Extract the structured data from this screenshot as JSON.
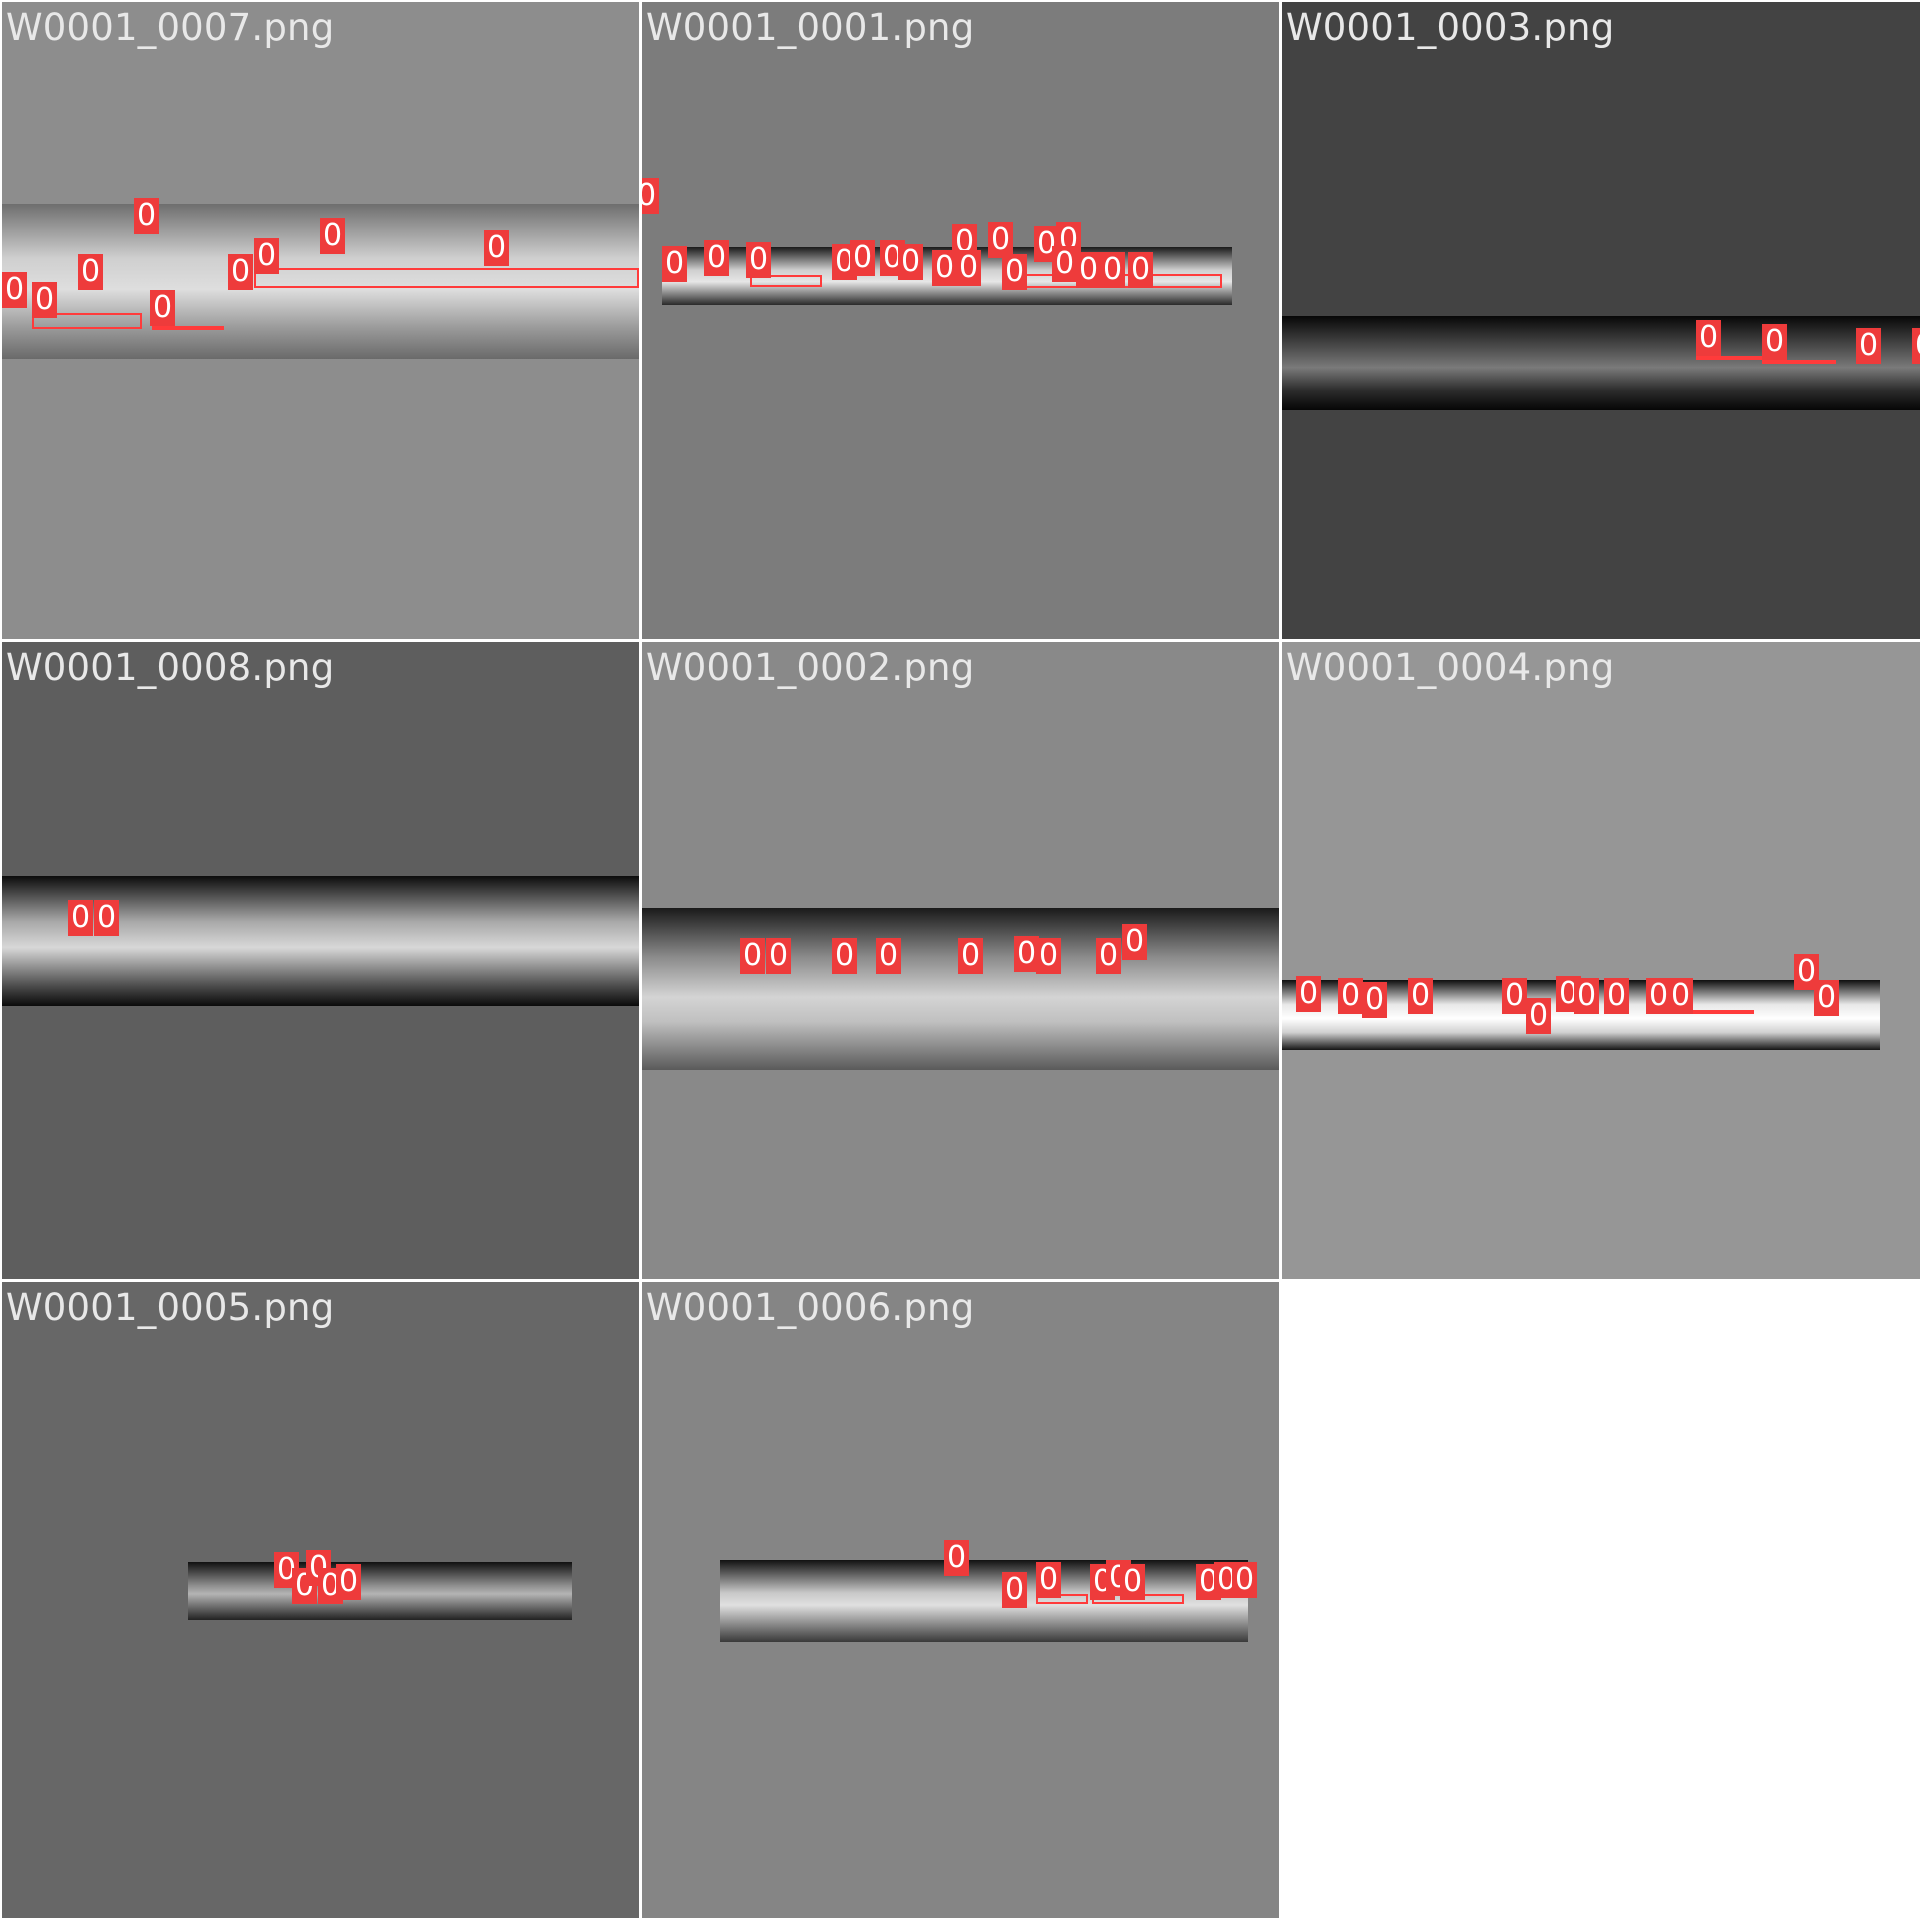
{
  "grid_title": "",
  "tiles": [
    {
      "label": "W0001_0007.png",
      "bg": "#8d8d8d"
    },
    {
      "label": "W0001_0001.png",
      "bg": "#7c7c7c"
    },
    {
      "label": "W0001_0003.png",
      "bg": "#434343"
    },
    {
      "label": "W0001_0008.png",
      "bg": "#5e5e5e"
    },
    {
      "label": "W0001_0002.png",
      "bg": "#898989"
    },
    {
      "label": "W0001_0004.png",
      "bg": "#969696"
    },
    {
      "label": "W0001_0005.png",
      "bg": "#676767"
    },
    {
      "label": "W0001_0006.png",
      "bg": "#858585"
    }
  ],
  "detection_class_label": "0",
  "colors": {
    "detection": "#ee3b3b",
    "separator": "#ffffff"
  }
}
